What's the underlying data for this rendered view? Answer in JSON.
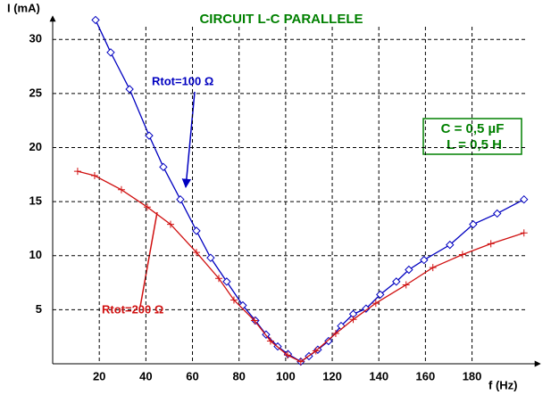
{
  "chart_data": {
    "type": "line",
    "title": "CIRCUIT L-C PARALLELE",
    "title_color": "#008000",
    "x_label": "f (Hz)",
    "y_label": "I (mA)",
    "xlim": [
      0,
      207
    ],
    "ylim": [
      0,
      32
    ],
    "xticks": [
      20,
      40,
      60,
      80,
      100,
      120,
      140,
      160,
      180
    ],
    "yticks": [
      5,
      10,
      15,
      20,
      25,
      30
    ],
    "grid": true,
    "annotations": [
      "C = 0,5 µF",
      "L = 0,5 H"
    ],
    "series": [
      {
        "name": "Rtot=100 Ω",
        "color": "#0000c0",
        "marker": "diamond",
        "x": [
          18.4,
          24.9,
          33,
          41.4,
          47.5,
          54.8,
          61.7,
          67.8,
          74.7,
          81.6,
          87,
          91.6,
          96.6,
          101,
          106.5,
          110,
          113.8,
          118.4,
          123.8,
          129,
          134.5,
          140.6,
          147.5,
          152.9,
          159.4,
          170.5,
          180.5,
          190.8,
          202.3
        ],
        "values": [
          31.8,
          28.8,
          25.4,
          21.1,
          18.2,
          15.2,
          12.3,
          9.8,
          7.6,
          5.4,
          4.0,
          2.7,
          1.6,
          0.9,
          0.2,
          0.7,
          1.3,
          2.1,
          3.5,
          4.6,
          5.1,
          6.4,
          7.6,
          8.7,
          9.6,
          11,
          12.9,
          13.9,
          15.2
        ]
      },
      {
        "name": "Rtot=200 Ω",
        "color": "#d01010",
        "marker": "plus",
        "x": [
          10.7,
          18,
          29.5,
          40.6,
          50.6,
          61.7,
          71.3,
          77.8,
          86.6,
          93.5,
          100.8,
          106.5,
          113,
          121.5,
          129,
          138.7,
          151.7,
          163.2,
          175.9,
          188.1,
          202.3
        ],
        "values": [
          17.8,
          17.4,
          16.1,
          14.5,
          12.9,
          10.3,
          7.9,
          5.9,
          4.0,
          2.1,
          0.8,
          0.2,
          1.2,
          2.8,
          4.1,
          5.6,
          7.3,
          8.9,
          10.1,
          11.1,
          12.1
        ]
      }
    ]
  }
}
